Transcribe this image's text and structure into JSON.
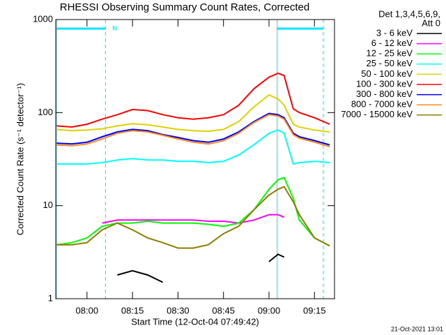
{
  "chart_data": {
    "type": "line",
    "title": "RHESSI Observing Summary Count Rates, Corrected",
    "y_label": "Corrected Count Rate (s⁻¹ detector⁻¹)",
    "x_label": "Start Time (12-Oct-04 07:49:42)",
    "legend_title": [
      "Det 1,3,4,5,6,9,",
      "Att 0"
    ],
    "footer": "21-Oct-2021 13:01",
    "log_y": true,
    "xlim": [
      469.7,
      561.6
    ],
    "ylim": [
      1,
      1000
    ],
    "yticks": [
      1,
      10,
      100,
      1000
    ],
    "xticks": [
      {
        "value": 480,
        "label": "08:00"
      },
      {
        "value": 495,
        "label": "08:15"
      },
      {
        "value": 510,
        "label": "08:30"
      },
      {
        "value": 525,
        "label": "08:45"
      },
      {
        "value": 540,
        "label": "09:00"
      },
      {
        "value": 555,
        "label": "09:15"
      }
    ],
    "intervals": [
      [
        470.0,
        486.1
      ],
      [
        542.7,
        557.9
      ]
    ],
    "interval_label": "N",
    "interval_color": "#00e5ff",
    "x": [
      470,
      475,
      480,
      485,
      490,
      495,
      500,
      505,
      510,
      515,
      520,
      525,
      530,
      535,
      540,
      543,
      545,
      548,
      550,
      555,
      560
    ],
    "series": [
      {
        "name": "3 - 6 keV",
        "color": "#000000",
        "values": [
          null,
          null,
          null,
          null,
          1.8,
          2,
          1.8,
          1.5,
          null,
          null,
          null,
          null,
          null,
          null,
          2.5,
          3,
          2.8,
          null,
          null,
          null,
          null
        ]
      },
      {
        "name": "6 - 12 keV",
        "color": "#ff00ff",
        "values": [
          null,
          null,
          null,
          6.5,
          7,
          7,
          7,
          7,
          7,
          7,
          6.8,
          6.8,
          6.5,
          7,
          8,
          8,
          7.5,
          null,
          null,
          null,
          null
        ]
      },
      {
        "name": "12 - 25 keV",
        "color": "#00ff00",
        "values": [
          3.8,
          4,
          4.5,
          6,
          6.5,
          6.5,
          6.8,
          6.5,
          6.5,
          6.5,
          6.3,
          6,
          6.5,
          9,
          15,
          19,
          20,
          12,
          7,
          4.5,
          3.7
        ]
      },
      {
        "name": "25 - 50 keV",
        "color": "#00ffff",
        "values": [
          28,
          28,
          28,
          29,
          31,
          32,
          31,
          31,
          30,
          30,
          29,
          30,
          35,
          45,
          60,
          65,
          60,
          28,
          29,
          30,
          29
        ]
      },
      {
        "name": "50 - 100 keV",
        "color": "#e0d000",
        "values": [
          66,
          64,
          65,
          67,
          72,
          76,
          74,
          70,
          66,
          64,
          63,
          66,
          80,
          115,
          155,
          140,
          120,
          75,
          70,
          65,
          62
        ]
      },
      {
        "name": "100 - 300 keV",
        "color": "#ff0000",
        "values": [
          72,
          70,
          75,
          85,
          95,
          108,
          105,
          95,
          88,
          85,
          88,
          95,
          120,
          180,
          240,
          265,
          250,
          110,
          100,
          88,
          75
        ]
      },
      {
        "name": "300 - 800 keV",
        "color": "#0000ff",
        "values": [
          47,
          46,
          48,
          55,
          62,
          66,
          64,
          58,
          54,
          50,
          48,
          52,
          62,
          80,
          98,
          95,
          88,
          60,
          55,
          50,
          45
        ]
      },
      {
        "name": "800 - 7000 keV",
        "color": "#ff8c1a",
        "values": [
          45,
          44,
          46,
          52,
          60,
          64,
          62,
          57,
          52,
          48,
          46,
          50,
          60,
          78,
          95,
          92,
          85,
          58,
          53,
          48,
          43
        ]
      },
      {
        "name": "7000 - 15000 keV",
        "color": "#8b7d00",
        "values": [
          3.8,
          3.8,
          4,
          5.5,
          6.5,
          5.5,
          4.5,
          4,
          3.5,
          3.5,
          3.8,
          5,
          6,
          9,
          13,
          15,
          16,
          11,
          8,
          4.5,
          3.7
        ]
      }
    ]
  }
}
